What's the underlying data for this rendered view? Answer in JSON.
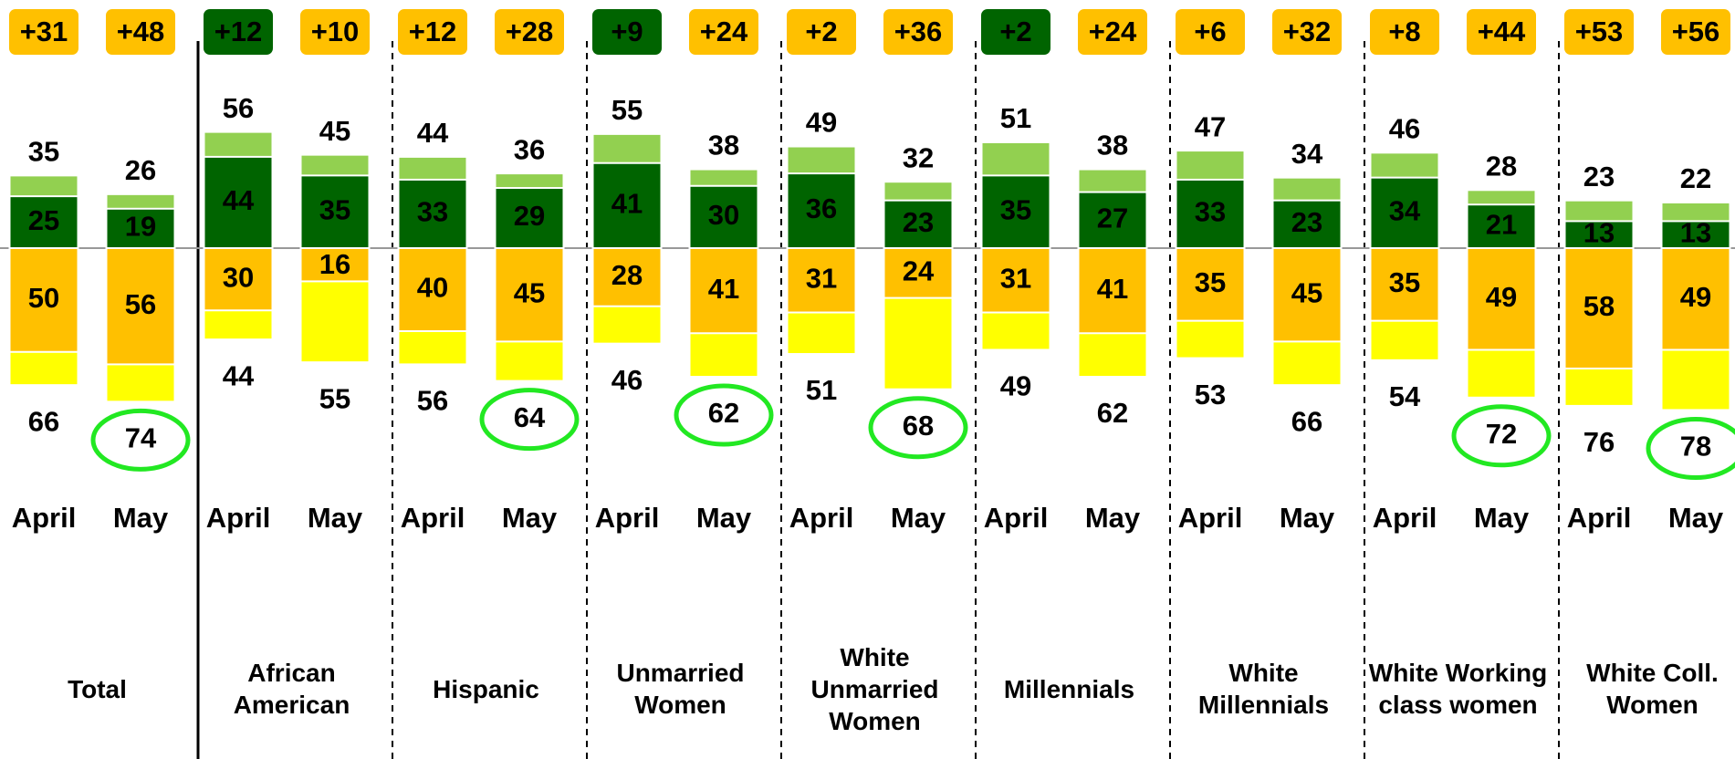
{
  "chart_data": {
    "type": "diverging_bar",
    "groups": [
      "Total",
      "African American",
      "Hispanic",
      "Unmarried Women",
      "White Unmarried Women",
      "Millennials",
      "White Millennials",
      "White Working class women",
      "White Coll. Women"
    ],
    "categories": [
      "April",
      "May",
      "April",
      "May",
      "April",
      "May",
      "April",
      "May",
      "April",
      "May",
      "April",
      "May",
      "April",
      "May",
      "April",
      "May",
      "April",
      "May"
    ],
    "ylim": [
      0,
      80
    ],
    "series": [
      {
        "side": "above",
        "color": "#92d050",
        "values": [
          35,
          26,
          56,
          45,
          44,
          36,
          55,
          38,
          49,
          32,
          51,
          38,
          47,
          34,
          46,
          28,
          23,
          22
        ]
      },
      {
        "side": "above",
        "color": "#006400",
        "values": [
          25,
          19,
          44,
          35,
          33,
          29,
          41,
          30,
          36,
          23,
          35,
          27,
          33,
          23,
          34,
          21,
          13,
          13
        ]
      },
      {
        "side": "below",
        "color": "#ffff00",
        "values": [
          66,
          74,
          44,
          55,
          56,
          64,
          46,
          62,
          51,
          68,
          49,
          62,
          53,
          66,
          54,
          72,
          76,
          78
        ]
      },
      {
        "side": "below",
        "color": "#ffc000",
        "values": [
          50,
          56,
          30,
          16,
          40,
          45,
          28,
          41,
          31,
          24,
          31,
          41,
          35,
          45,
          35,
          49,
          58,
          49
        ]
      }
    ],
    "margins": {
      "values": [
        31,
        48,
        12,
        10,
        12,
        28,
        9,
        24,
        2,
        36,
        2,
        24,
        6,
        32,
        8,
        44,
        53,
        56
      ],
      "value_labels": [
        "+31",
        "+48",
        "+12",
        "+10",
        "+12",
        "+28",
        "+9",
        "+24",
        "+2",
        "+36",
        "+2",
        "+24",
        "+6",
        "+32",
        "+8",
        "+44",
        "+53",
        "+56"
      ],
      "colors": [
        "#ffc000",
        "#ffc000",
        "#006400",
        "#ffc000",
        "#ffc000",
        "#ffc000",
        "#006400",
        "#ffc000",
        "#ffc000",
        "#ffc000",
        "#006400",
        "#ffc000",
        "#ffc000",
        "#ffc000",
        "#ffc000",
        "#ffc000",
        "#ffc000",
        "#ffc000"
      ]
    },
    "highlighted": [
      false,
      true,
      false,
      false,
      false,
      true,
      false,
      true,
      false,
      true,
      false,
      false,
      false,
      false,
      false,
      true,
      false,
      true
    ],
    "highlight_color": "#22e822"
  }
}
